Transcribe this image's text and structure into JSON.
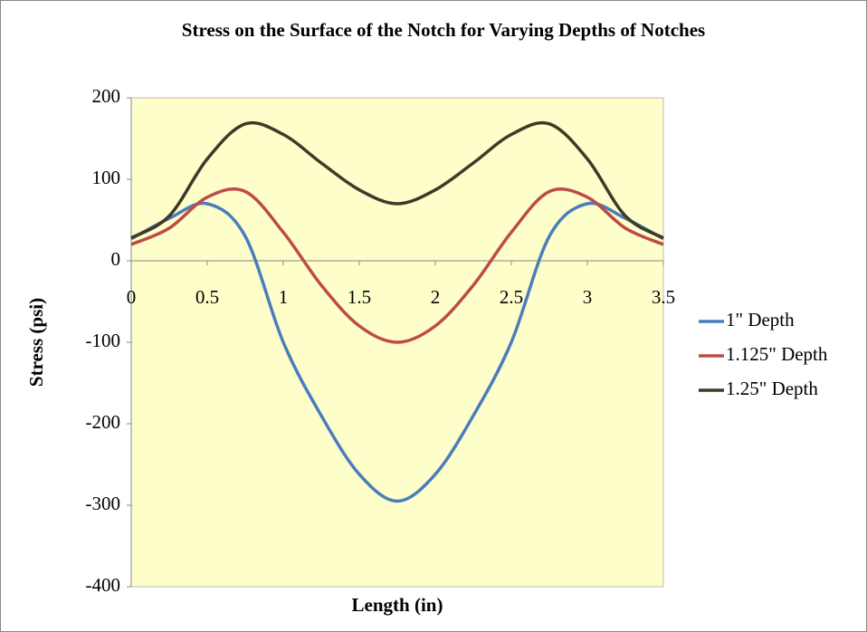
{
  "chart_data": {
    "type": "line",
    "title": "Stress on the Surface of the Notch for Varying Depths of Notches",
    "x_label": "Length (in)",
    "y_label": "Stress (psi)",
    "x": [
      0,
      0.25,
      0.5,
      0.75,
      1,
      1.25,
      1.5,
      1.75,
      2,
      2.25,
      2.5,
      2.75,
      3,
      3.25,
      3.5
    ],
    "series": [
      {
        "name": "1\" Depth",
        "color": "#4a7ebb",
        "values": [
          27,
          52,
          70,
          30,
          -100,
          -190,
          -262,
          -295,
          -262,
          -190,
          -100,
          30,
          70,
          52,
          27
        ]
      },
      {
        "name": "1.125\" Depth",
        "color": "#be4b48",
        "values": [
          20,
          40,
          78,
          85,
          35,
          -30,
          -80,
          -100,
          -80,
          -30,
          35,
          85,
          78,
          40,
          20
        ]
      },
      {
        "name": "1.25\" Depth",
        "color": "#3f3a28",
        "values": [
          28,
          55,
          125,
          168,
          155,
          120,
          87,
          70,
          87,
          120,
          155,
          168,
          125,
          55,
          28
        ]
      }
    ],
    "xlim": [
      0,
      3.5
    ],
    "xticks": [
      0,
      0.5,
      1,
      1.5,
      2,
      2.5,
      3,
      3.5
    ],
    "ylim": [
      -400,
      200
    ],
    "yticks": [
      -400,
      -300,
      -200,
      -100,
      0,
      100,
      200
    ],
    "grid": false,
    "legend": "right",
    "plot_background": "#fefecb"
  }
}
